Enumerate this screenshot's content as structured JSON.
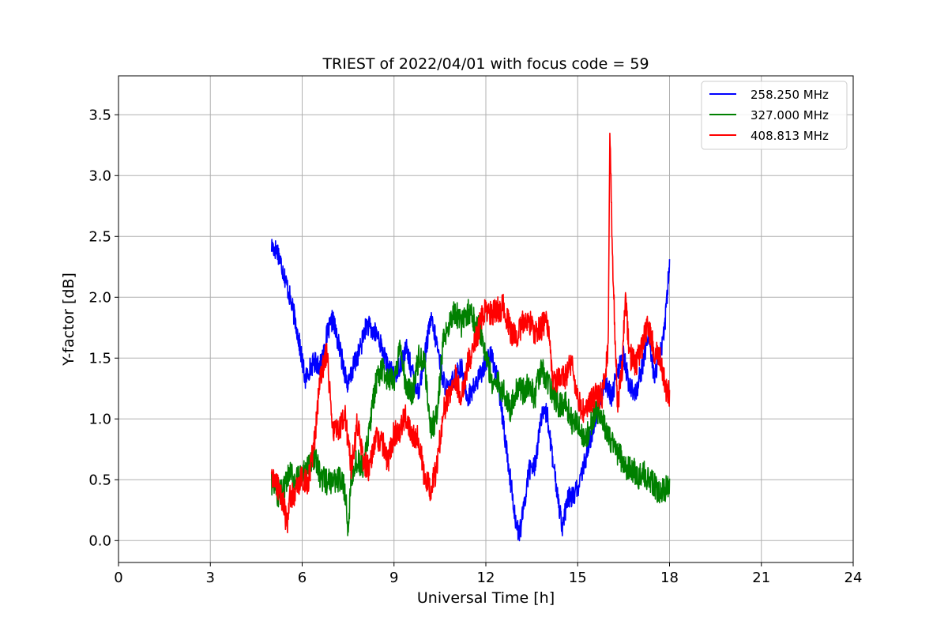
{
  "chart_data": {
    "type": "line",
    "title": "TRIEST of 2022/04/01 with focus code = 59",
    "xlabel": "Universal Time [h]",
    "ylabel": "Y-factor [dB]",
    "xlim": [
      0,
      24
    ],
    "ylim": [
      -0.18,
      3.82
    ],
    "xticks": [
      0,
      3,
      6,
      9,
      12,
      15,
      18,
      21,
      24
    ],
    "yticks": [
      0.0,
      0.5,
      1.0,
      1.5,
      2.0,
      2.5,
      3.0,
      3.5
    ],
    "xtick_labels": [
      "0",
      "3",
      "6",
      "9",
      "12",
      "15",
      "18",
      "21",
      "24"
    ],
    "ytick_labels": [
      "0.0",
      "0.5",
      "1.0",
      "1.5",
      "2.0",
      "2.5",
      "3.0",
      "3.5"
    ],
    "grid": true,
    "legend_position": "top-right",
    "series": [
      {
        "name": "258.250 MHz",
        "color": "#0000ff",
        "noise": 0.09,
        "x": [
          5.0,
          5.2,
          5.4,
          5.6,
          5.8,
          6.0,
          6.1,
          6.25,
          6.4,
          6.6,
          6.8,
          7.0,
          7.2,
          7.4,
          7.5,
          7.7,
          7.9,
          8.1,
          8.3,
          8.5,
          8.6,
          8.8,
          9.0,
          9.2,
          9.4,
          9.6,
          9.8,
          10.0,
          10.2,
          10.4,
          10.6,
          10.8,
          11.0,
          11.2,
          11.4,
          11.6,
          11.8,
          12.0,
          12.2,
          12.4,
          12.6,
          12.8,
          13.0,
          13.1,
          13.25,
          13.4,
          13.6,
          13.8,
          14.0,
          14.2,
          14.4,
          14.5,
          14.7,
          14.9,
          15.1,
          15.3,
          15.5,
          15.7,
          15.9,
          16.1,
          16.3,
          16.5,
          16.7,
          16.9,
          17.1,
          17.3,
          17.5,
          17.7,
          17.85,
          18.0
        ],
        "y": [
          2.42,
          2.38,
          2.2,
          2.0,
          1.78,
          1.48,
          1.32,
          1.42,
          1.47,
          1.44,
          1.68,
          1.82,
          1.6,
          1.38,
          1.27,
          1.45,
          1.58,
          1.78,
          1.72,
          1.68,
          1.58,
          1.42,
          1.35,
          1.45,
          1.58,
          1.38,
          1.22,
          1.5,
          1.82,
          1.62,
          1.32,
          1.22,
          1.38,
          1.42,
          1.18,
          1.25,
          1.35,
          1.48,
          1.52,
          1.3,
          0.9,
          0.5,
          0.12,
          0.05,
          0.28,
          0.58,
          0.62,
          1.0,
          1.05,
          0.62,
          0.28,
          0.12,
          0.35,
          0.38,
          0.5,
          0.72,
          0.92,
          1.12,
          1.32,
          1.18,
          1.38,
          1.52,
          1.25,
          1.22,
          1.42,
          1.7,
          1.35,
          1.52,
          1.78,
          2.28
        ]
      },
      {
        "name": "327.000 MHz",
        "color": "#008000",
        "noise": 0.11,
        "x": [
          5.0,
          5.2,
          5.4,
          5.6,
          5.8,
          6.0,
          6.2,
          6.4,
          6.6,
          6.8,
          7.0,
          7.2,
          7.4,
          7.5,
          7.6,
          7.8,
          8.0,
          8.2,
          8.4,
          8.6,
          8.8,
          9.0,
          9.2,
          9.4,
          9.6,
          9.8,
          10.0,
          10.2,
          10.4,
          10.6,
          10.8,
          11.0,
          11.2,
          11.4,
          11.6,
          11.8,
          12.0,
          12.2,
          12.4,
          12.6,
          12.8,
          13.0,
          13.2,
          13.4,
          13.6,
          13.8,
          14.0,
          14.2,
          14.4,
          14.6,
          14.8,
          15.0,
          15.2,
          15.4,
          15.6,
          15.8,
          16.0,
          16.2,
          16.4,
          16.6,
          16.8,
          17.0,
          17.2,
          17.4,
          17.6,
          17.8,
          18.0
        ],
        "y": [
          0.48,
          0.38,
          0.42,
          0.55,
          0.5,
          0.52,
          0.62,
          0.7,
          0.52,
          0.48,
          0.5,
          0.5,
          0.42,
          0.08,
          0.55,
          0.65,
          0.58,
          0.92,
          1.28,
          1.42,
          1.3,
          1.32,
          1.58,
          1.25,
          1.2,
          1.5,
          1.45,
          0.92,
          1.02,
          1.62,
          1.8,
          1.88,
          1.78,
          1.88,
          1.82,
          1.75,
          1.52,
          1.3,
          1.28,
          1.22,
          1.08,
          1.25,
          1.22,
          1.28,
          1.18,
          1.42,
          1.32,
          1.2,
          1.1,
          1.15,
          0.98,
          0.98,
          0.82,
          0.92,
          1.1,
          1.0,
          0.85,
          0.78,
          0.68,
          0.6,
          0.58,
          0.52,
          0.55,
          0.48,
          0.42,
          0.4,
          0.48
        ]
      },
      {
        "name": "408.813 MHz",
        "color": "#ff0000",
        "noise": 0.11,
        "x": [
          5.0,
          5.2,
          5.4,
          5.5,
          5.6,
          5.8,
          6.0,
          6.2,
          6.4,
          6.6,
          6.8,
          7.0,
          7.2,
          7.4,
          7.6,
          7.8,
          8.0,
          8.2,
          8.4,
          8.6,
          8.8,
          9.0,
          9.2,
          9.4,
          9.6,
          9.8,
          10.0,
          10.2,
          10.4,
          10.6,
          10.8,
          11.0,
          11.2,
          11.4,
          11.6,
          11.8,
          12.0,
          12.2,
          12.4,
          12.6,
          12.8,
          13.0,
          13.2,
          13.4,
          13.6,
          13.8,
          14.0,
          14.2,
          14.4,
          14.6,
          14.8,
          15.0,
          15.2,
          15.4,
          15.6,
          15.8,
          16.0,
          16.05,
          16.15,
          16.3,
          16.45,
          16.55,
          16.7,
          16.9,
          17.1,
          17.3,
          17.5,
          17.7,
          17.9,
          18.0
        ],
        "y": [
          0.52,
          0.45,
          0.3,
          0.12,
          0.35,
          0.4,
          0.52,
          0.48,
          0.82,
          1.35,
          1.55,
          0.92,
          0.88,
          1.05,
          0.6,
          0.98,
          0.65,
          0.58,
          0.85,
          0.82,
          0.65,
          0.88,
          0.92,
          1.02,
          0.88,
          0.85,
          0.5,
          0.42,
          0.6,
          1.05,
          1.2,
          1.35,
          1.18,
          1.45,
          1.58,
          1.78,
          1.9,
          1.85,
          1.9,
          1.92,
          1.72,
          1.68,
          1.78,
          1.82,
          1.7,
          1.75,
          1.82,
          1.28,
          1.32,
          1.35,
          1.48,
          1.15,
          1.05,
          1.12,
          1.22,
          1.18,
          1.6,
          3.38,
          2.2,
          1.12,
          1.38,
          2.0,
          1.52,
          1.45,
          1.6,
          1.78,
          1.55,
          1.48,
          1.22,
          1.2
        ]
      }
    ]
  }
}
